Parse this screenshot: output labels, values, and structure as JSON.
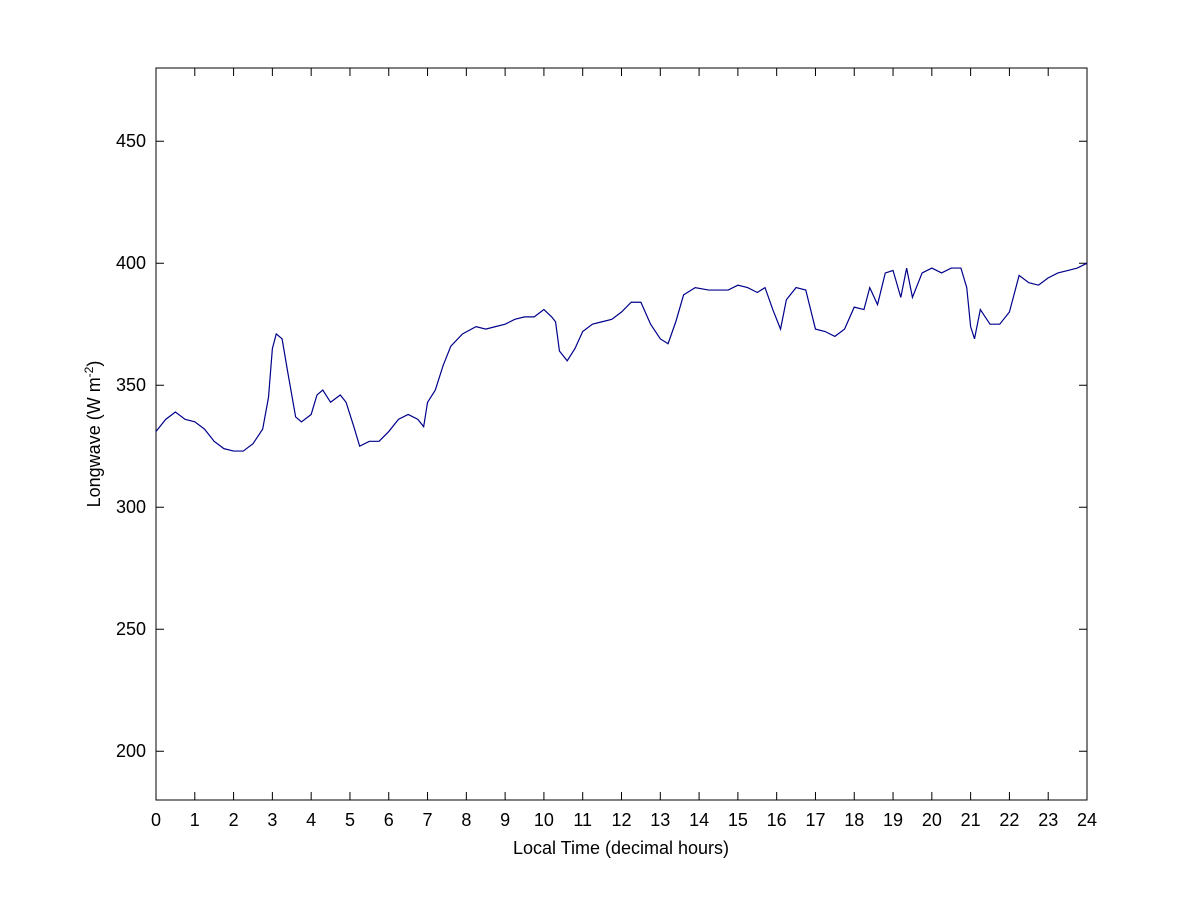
{
  "chart_data": {
    "type": "line",
    "xlabel": "Local Time (decimal hours)",
    "ylabel": {
      "text": "Longwave (W m",
      "superscript": "-2",
      "suffix": ")"
    },
    "x": [
      0,
      0.25,
      0.5,
      0.75,
      1,
      1.25,
      1.5,
      1.75,
      2,
      2.25,
      2.5,
      2.75,
      2.9,
      3,
      3.1,
      3.25,
      3.4,
      3.6,
      3.75,
      4,
      4.15,
      4.3,
      4.5,
      4.75,
      4.9,
      5.1,
      5.25,
      5.5,
      5.75,
      6,
      6.25,
      6.5,
      6.75,
      6.9,
      7,
      7.2,
      7.4,
      7.6,
      7.9,
      8.25,
      8.5,
      8.75,
      9,
      9.25,
      9.5,
      9.75,
      10,
      10.2,
      10.3,
      10.4,
      10.6,
      10.8,
      11,
      11.25,
      11.5,
      11.75,
      12,
      12.25,
      12.5,
      12.75,
      13,
      13.2,
      13.4,
      13.6,
      13.9,
      14.25,
      14.5,
      14.75,
      15,
      15.25,
      15.5,
      15.7,
      15.9,
      16.1,
      16.25,
      16.5,
      16.75,
      17,
      17.25,
      17.5,
      17.75,
      18,
      18.25,
      18.4,
      18.6,
      18.8,
      19,
      19.2,
      19.35,
      19.5,
      19.75,
      20,
      20.25,
      20.5,
      20.75,
      20.9,
      21,
      21.1,
      21.25,
      21.5,
      21.75,
      22,
      22.25,
      22.5,
      22.75,
      23,
      23.25,
      23.5,
      23.75,
      24
    ],
    "series": [
      {
        "name": "Longwave",
        "color": "#00008b",
        "values": [
          331,
          336,
          339,
          336,
          335,
          332,
          327,
          324,
          323,
          323,
          326,
          332,
          345,
          365,
          371,
          369,
          355,
          337,
          335,
          338,
          346,
          348,
          343,
          346,
          343,
          333,
          325,
          327,
          327,
          331,
          336,
          338,
          336,
          333,
          343,
          348,
          358,
          366,
          371,
          374,
          373,
          374,
          375,
          377,
          378,
          378,
          381,
          378,
          376,
          364,
          360,
          365,
          372,
          375,
          376,
          377,
          380,
          384,
          384,
          375,
          369,
          367,
          376,
          387,
          390,
          389,
          389,
          389,
          391,
          390,
          388,
          390,
          381,
          373,
          385,
          390,
          389,
          373,
          372,
          370,
          373,
          382,
          381,
          390,
          383,
          396,
          397,
          386,
          398,
          386,
          396,
          398,
          396,
          398,
          398,
          390,
          374,
          369,
          381,
          375,
          375,
          380,
          395,
          392,
          391,
          394,
          396,
          397,
          398,
          400
        ]
      }
    ],
    "xlim": [
      0,
      24
    ],
    "ylim": [
      180,
      480
    ],
    "xticks": [
      0,
      1,
      2,
      3,
      4,
      5,
      6,
      7,
      8,
      9,
      10,
      11,
      12,
      13,
      14,
      15,
      16,
      17,
      18,
      19,
      20,
      21,
      22,
      23,
      24
    ],
    "yticks": [
      200,
      250,
      300,
      350,
      400,
      450
    ]
  }
}
